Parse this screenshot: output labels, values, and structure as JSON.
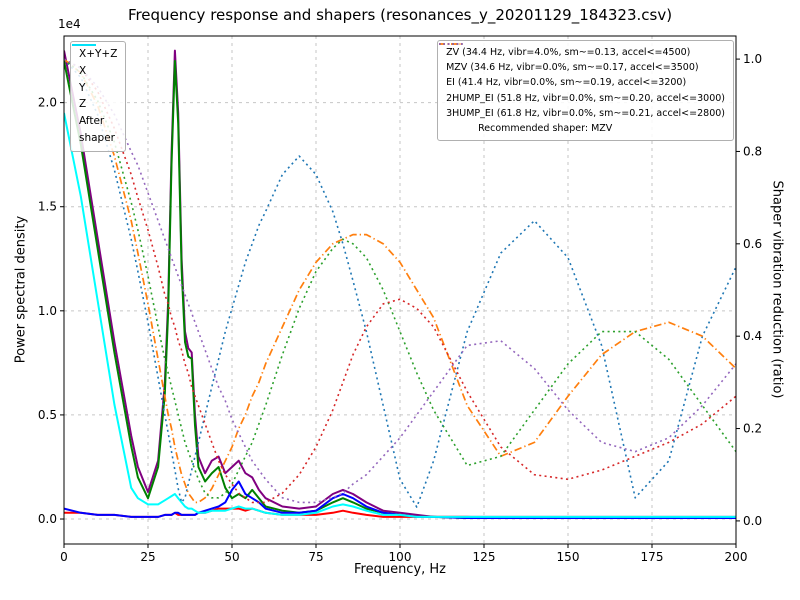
{
  "title": "Frequency response and shapers (resonances_y_20201129_184323.csv)",
  "axes": {
    "x": {
      "label": "Frequency, Hz",
      "min": 0,
      "max": 200,
      "tick_values": [
        0,
        25,
        50,
        75,
        100,
        125,
        150,
        175,
        200
      ],
      "tick_labels": [
        "0",
        "25",
        "50",
        "75",
        "100",
        "125",
        "150",
        "175",
        "200"
      ]
    },
    "y_left": {
      "label": "Power spectral density",
      "offset_text": "1e4",
      "lim": [
        -0.12,
        2.32
      ],
      "tick_values": [
        0,
        0.5,
        1,
        1.5,
        2
      ],
      "tick_labels": [
        "0.0",
        "0.5",
        "1.0",
        "1.5",
        "2.0"
      ]
    },
    "y_right": {
      "label": "Shaper vibration reduction (ratio)",
      "lim": [
        -0.05,
        1.05
      ],
      "tick_values": [
        0,
        0.2,
        0.4,
        0.6,
        0.8,
        1
      ],
      "tick_labels": [
        "0.0",
        "0.2",
        "0.4",
        "0.6",
        "0.8",
        "1.0"
      ]
    }
  },
  "legend_psd": {
    "items": [
      {
        "label": "X+Y+Z",
        "color": "#800080",
        "style": "solid"
      },
      {
        "label": "X",
        "color": "#ff0000",
        "style": "solid"
      },
      {
        "label": "Y",
        "color": "#008000",
        "style": "solid"
      },
      {
        "label": "Z",
        "color": "#0000ff",
        "style": "solid"
      },
      {
        "label": "After\nshaper",
        "color": "#00ffff",
        "style": "solid"
      }
    ]
  },
  "legend_shapers": {
    "items": [
      {
        "label": "ZV (34.4 Hz, vibr=4.0%, sm~=0.13, accel<=4500)",
        "color": "#1f77b4",
        "style": "dotted"
      },
      {
        "label": "MZV (34.6 Hz, vibr=0.0%, sm~=0.17, accel<=3500)",
        "color": "#ff7f0e",
        "style": "dashdot"
      },
      {
        "label": "EI (41.4 Hz, vibr=0.0%, sm~=0.19, accel<=3200)",
        "color": "#2ca02c",
        "style": "dotted"
      },
      {
        "label": "2HUMP_EI (51.8 Hz, vibr=0.0%, sm~=0.20, accel<=3000)",
        "color": "#d62728",
        "style": "dotted"
      },
      {
        "label": "3HUMP_EI (61.8 Hz, vibr=0.0%, sm~=0.21, accel<=2800)",
        "color": "#9467bd",
        "style": "dotted"
      }
    ],
    "footer": "Recommended shaper: MZV"
  },
  "chart_data": {
    "type": "line",
    "x_axis_units": "Hz",
    "left_units": "power spectral density (1e4)",
    "right_units": "vibration reduction ratio",
    "x": [
      0,
      5,
      10,
      15,
      20,
      22,
      25,
      28,
      30,
      31,
      32,
      33,
      34,
      35,
      36,
      37,
      38,
      39,
      40,
      42,
      44,
      46,
      48,
      50,
      52,
      54,
      56,
      58,
      60,
      65,
      70,
      75,
      80,
      83,
      86,
      90,
      95,
      100,
      105,
      110,
      120,
      130,
      140,
      150,
      160,
      170,
      180,
      190,
      200
    ],
    "series": [
      {
        "name": "X+Y+Z",
        "axis": "left",
        "color": "#800080",
        "style": "solid",
        "width": 2,
        "values": [
          2.25,
          1.85,
          1.35,
          0.85,
          0.4,
          0.25,
          0.13,
          0.28,
          0.65,
          1.05,
          1.75,
          2.25,
          1.95,
          1.25,
          0.9,
          0.82,
          0.8,
          0.5,
          0.3,
          0.22,
          0.28,
          0.3,
          0.22,
          0.25,
          0.28,
          0.22,
          0.2,
          0.14,
          0.1,
          0.06,
          0.05,
          0.06,
          0.12,
          0.14,
          0.12,
          0.08,
          0.04,
          0.03,
          0.02,
          0.01,
          0.01,
          0.01,
          0.01,
          0.01,
          0.01,
          0.01,
          0.01,
          0.01,
          0.01
        ]
      },
      {
        "name": "X",
        "axis": "left",
        "color": "#ff0000",
        "style": "solid",
        "width": 2,
        "values": [
          0.03,
          0.03,
          0.02,
          0.02,
          0.01,
          0.01,
          0.01,
          0.01,
          0.02,
          0.02,
          0.02,
          0.03,
          0.02,
          0.02,
          0.02,
          0.02,
          0.02,
          0.02,
          0.03,
          0.03,
          0.04,
          0.05,
          0.05,
          0.05,
          0.05,
          0.04,
          0.05,
          0.04,
          0.03,
          0.02,
          0.02,
          0.02,
          0.03,
          0.04,
          0.03,
          0.02,
          0.01,
          0.01,
          0.01,
          0.01,
          0.01,
          0.005,
          0.005,
          0.005,
          0.005,
          0.005,
          0.005,
          0.005,
          0.005
        ]
      },
      {
        "name": "Y",
        "axis": "left",
        "color": "#008000",
        "style": "solid",
        "width": 2,
        "values": [
          2.2,
          1.8,
          1.3,
          0.8,
          0.35,
          0.2,
          0.1,
          0.25,
          0.6,
          1.0,
          1.7,
          2.2,
          1.9,
          1.2,
          0.85,
          0.78,
          0.77,
          0.45,
          0.25,
          0.18,
          0.22,
          0.25,
          0.15,
          0.1,
          0.12,
          0.1,
          0.14,
          0.1,
          0.06,
          0.04,
          0.03,
          0.04,
          0.08,
          0.1,
          0.08,
          0.05,
          0.03,
          0.02,
          0.01,
          0.01,
          0.005,
          0.005,
          0.005,
          0.005,
          0.005,
          0.005,
          0.005,
          0.005,
          0.005
        ]
      },
      {
        "name": "Z",
        "axis": "left",
        "color": "#0000ff",
        "style": "solid",
        "width": 2,
        "values": [
          0.05,
          0.03,
          0.02,
          0.02,
          0.01,
          0.01,
          0.01,
          0.01,
          0.02,
          0.02,
          0.02,
          0.03,
          0.03,
          0.02,
          0.02,
          0.02,
          0.02,
          0.02,
          0.03,
          0.04,
          0.05,
          0.06,
          0.08,
          0.14,
          0.18,
          0.12,
          0.1,
          0.08,
          0.05,
          0.03,
          0.03,
          0.04,
          0.1,
          0.12,
          0.1,
          0.06,
          0.03,
          0.02,
          0.01,
          0.01,
          0.005,
          0.005,
          0.005,
          0.005,
          0.005,
          0.005,
          0.005,
          0.005,
          0.005
        ]
      },
      {
        "name": "After shaper",
        "axis": "left",
        "color": "#00ffff",
        "style": "solid",
        "width": 2,
        "values": [
          1.95,
          1.55,
          1.05,
          0.55,
          0.15,
          0.1,
          0.07,
          0.07,
          0.09,
          0.1,
          0.11,
          0.12,
          0.1,
          0.08,
          0.06,
          0.05,
          0.05,
          0.04,
          0.03,
          0.03,
          0.04,
          0.04,
          0.04,
          0.05,
          0.06,
          0.05,
          0.05,
          0.04,
          0.03,
          0.02,
          0.02,
          0.03,
          0.06,
          0.07,
          0.06,
          0.04,
          0.02,
          0.02,
          0.01,
          0.01,
          0.01,
          0.01,
          0.01,
          0.01,
          0.01,
          0.01,
          0.01,
          0.01,
          0.01
        ]
      },
      {
        "name": "ZV",
        "axis": "right",
        "color": "#1f77b4",
        "style": "dotted",
        "width": 1.6,
        "values": [
          1.0,
          0.96,
          0.88,
          0.76,
          0.61,
          0.54,
          0.43,
          0.31,
          0.23,
          0.19,
          0.15,
          0.11,
          0.07,
          0.04,
          0.05,
          0.08,
          0.11,
          0.14,
          0.17,
          0.23,
          0.29,
          0.35,
          0.41,
          0.46,
          0.51,
          0.56,
          0.6,
          0.64,
          0.67,
          0.75,
          0.79,
          0.75,
          0.67,
          0.6,
          0.52,
          0.41,
          0.25,
          0.09,
          0.03,
          0.13,
          0.41,
          0.58,
          0.65,
          0.57,
          0.38,
          0.05,
          0.13,
          0.4,
          0.55
        ]
      },
      {
        "name": "MZV",
        "axis": "right",
        "color": "#ff7f0e",
        "style": "dashdot",
        "width": 1.7,
        "values": [
          1.0,
          0.97,
          0.9,
          0.79,
          0.65,
          0.58,
          0.47,
          0.35,
          0.27,
          0.23,
          0.2,
          0.16,
          0.13,
          0.1,
          0.08,
          0.06,
          0.05,
          0.04,
          0.04,
          0.05,
          0.07,
          0.1,
          0.13,
          0.16,
          0.2,
          0.23,
          0.27,
          0.3,
          0.34,
          0.42,
          0.5,
          0.56,
          0.6,
          0.61,
          0.62,
          0.62,
          0.6,
          0.56,
          0.5,
          0.44,
          0.25,
          0.14,
          0.17,
          0.27,
          0.36,
          0.41,
          0.43,
          0.4,
          0.33
        ]
      },
      {
        "name": "EI",
        "axis": "right",
        "color": "#2ca02c",
        "style": "dotted",
        "width": 1.6,
        "values": [
          1.0,
          0.97,
          0.91,
          0.82,
          0.69,
          0.63,
          0.53,
          0.42,
          0.35,
          0.32,
          0.29,
          0.26,
          0.23,
          0.2,
          0.17,
          0.15,
          0.13,
          0.11,
          0.09,
          0.06,
          0.05,
          0.05,
          0.06,
          0.08,
          0.11,
          0.14,
          0.17,
          0.21,
          0.25,
          0.36,
          0.46,
          0.54,
          0.59,
          0.61,
          0.6,
          0.57,
          0.5,
          0.41,
          0.32,
          0.24,
          0.12,
          0.14,
          0.24,
          0.34,
          0.41,
          0.41,
          0.35,
          0.25,
          0.15
        ]
      },
      {
        "name": "2HUMP_EI",
        "axis": "right",
        "color": "#d62728",
        "style": "dotted",
        "width": 1.6,
        "values": [
          1.0,
          0.98,
          0.93,
          0.85,
          0.75,
          0.7,
          0.63,
          0.55,
          0.49,
          0.47,
          0.44,
          0.42,
          0.39,
          0.37,
          0.34,
          0.32,
          0.29,
          0.27,
          0.25,
          0.21,
          0.17,
          0.13,
          0.1,
          0.08,
          0.06,
          0.05,
          0.04,
          0.04,
          0.04,
          0.06,
          0.1,
          0.16,
          0.24,
          0.3,
          0.36,
          0.42,
          0.47,
          0.48,
          0.46,
          0.42,
          0.28,
          0.16,
          0.1,
          0.09,
          0.11,
          0.14,
          0.17,
          0.21,
          0.27
        ]
      },
      {
        "name": "3HUMP_EI",
        "axis": "right",
        "color": "#9467bd",
        "style": "dotted",
        "width": 1.6,
        "values": [
          1.0,
          0.98,
          0.94,
          0.88,
          0.8,
          0.77,
          0.71,
          0.65,
          0.61,
          0.59,
          0.57,
          0.55,
          0.53,
          0.51,
          0.49,
          0.47,
          0.45,
          0.43,
          0.41,
          0.37,
          0.33,
          0.29,
          0.26,
          0.22,
          0.19,
          0.16,
          0.13,
          0.11,
          0.09,
          0.05,
          0.04,
          0.04,
          0.05,
          0.06,
          0.08,
          0.1,
          0.14,
          0.18,
          0.23,
          0.28,
          0.38,
          0.39,
          0.33,
          0.24,
          0.17,
          0.15,
          0.18,
          0.25,
          0.34
        ]
      }
    ]
  }
}
